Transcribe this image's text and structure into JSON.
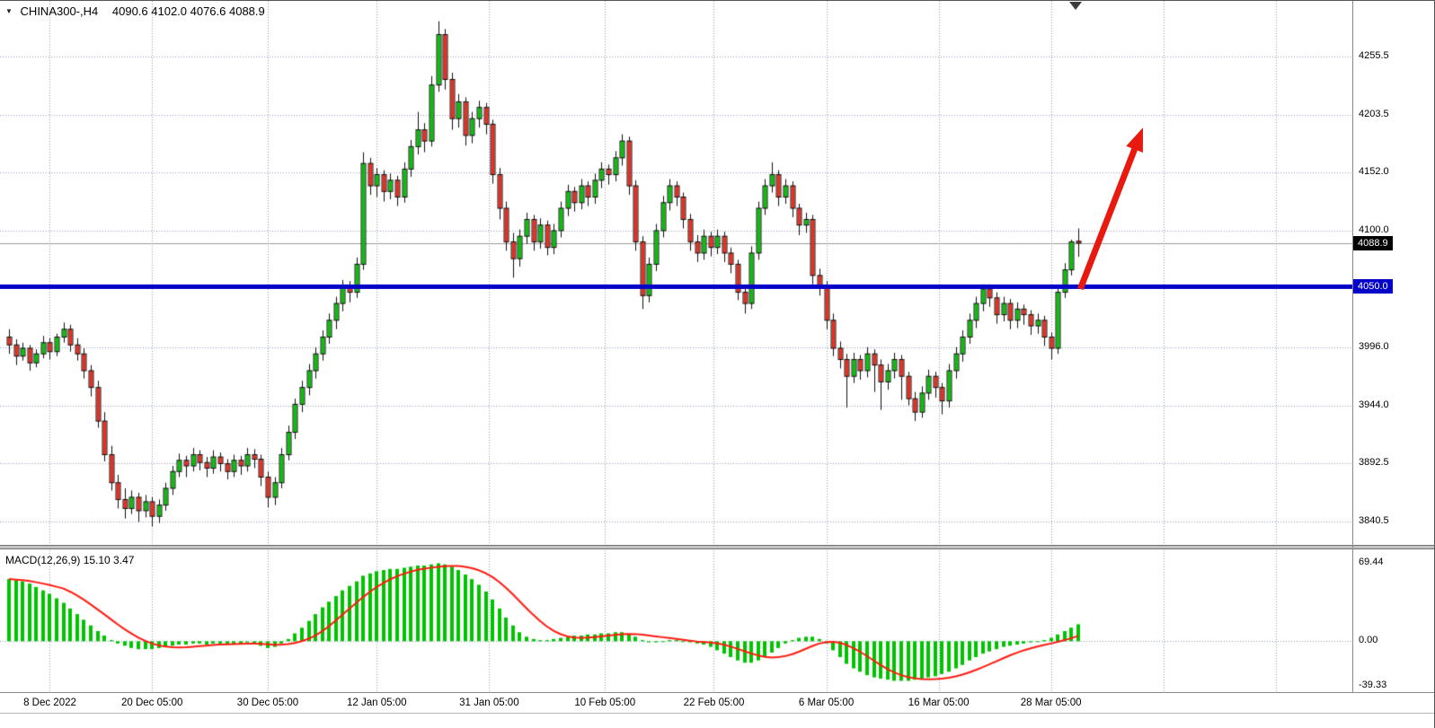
{
  "header": {
    "symbol_period": "CHINA300-,H4",
    "ohlc_text": "4090.6 4102.0 4076.6 4088.9"
  },
  "colors": {
    "background": "#ffffff",
    "grid": "#8f9bbd",
    "bull": "#05c405",
    "bear": "#ee2d1e",
    "candle_border": "#101010",
    "wick": "#101010",
    "current_price_line": "#9a9a9a",
    "macd_hist": "#00c400",
    "macd_signal": "#ff1a10",
    "badge_current_bg": "#000000",
    "badge_text": "#ffffff"
  },
  "chart_data": {
    "type": "candlestick",
    "symbol": "CHINA300-",
    "timeframe": "H4",
    "current_bar": {
      "open": 4090.6,
      "high": 4102.0,
      "low": 4076.6,
      "close": 4088.9
    },
    "price_range": [
      3819.5,
      4305.1
    ],
    "price_axis": {
      "current_label": "4088.9",
      "ticks": [
        {
          "price": 4255.5,
          "label": "4255.5"
        },
        {
          "price": 4203.5,
          "label": "4203.5"
        },
        {
          "price": 4152.0,
          "label": "4152.0"
        },
        {
          "price": 4100.0,
          "label": "4100.0"
        },
        {
          "price": 3996.0,
          "label": "3996.0"
        },
        {
          "price": 3944.0,
          "label": "3944.0"
        },
        {
          "price": 3892.5,
          "label": "3892.5"
        },
        {
          "price": 3840.5,
          "label": "3840.5"
        }
      ]
    },
    "hline": {
      "price": 4050.0,
      "label": "4050.0",
      "color": "#0202c8"
    },
    "trend_arrow": {
      "from_bar": 157.3,
      "from_price": 4048,
      "to_bar": 166.5,
      "to_price": 4192,
      "color": "#e81a10"
    },
    "time_axis": {
      "labels": [
        {
          "label": "8 Dec 2022",
          "bar": 6
        },
        {
          "label": "20 Dec 05:00",
          "bar": 21
        },
        {
          "label": "30 Dec 05:00",
          "bar": 38
        },
        {
          "label": "12 Jan 05:00",
          "bar": 54
        },
        {
          "label": "31 Jan 05:00",
          "bar": 70.5
        },
        {
          "label": "10 Feb 05:00",
          "bar": 87.5
        },
        {
          "label": "22 Feb 05:00",
          "bar": 103.5
        },
        {
          "label": "6 Mar 05:00",
          "bar": 120
        },
        {
          "label": "16 Mar 05:00",
          "bar": 136.5
        },
        {
          "label": "28 Mar 05:00",
          "bar": 153
        }
      ],
      "extra_gridline_bars": [
        169.5,
        186
      ]
    },
    "candles": [
      [
        4005,
        4012,
        3990,
        3998
      ],
      [
        3998,
        4003,
        3980,
        3988
      ],
      [
        3988,
        4000,
        3984,
        3995
      ],
      [
        3995,
        3998,
        3975,
        3982
      ],
      [
        3982,
        3994,
        3978,
        3990
      ],
      [
        3990,
        4006,
        3986,
        4000
      ],
      [
        4000,
        4004,
        3985,
        3992
      ],
      [
        3992,
        4008,
        3988,
        4005
      ],
      [
        4005,
        4018,
        4000,
        4012
      ],
      [
        4012,
        4016,
        3992,
        3998
      ],
      [
        3998,
        4004,
        3984,
        3990
      ],
      [
        3990,
        3995,
        3968,
        3975
      ],
      [
        3975,
        3980,
        3952,
        3960
      ],
      [
        3960,
        3966,
        3924,
        3930
      ],
      [
        3930,
        3938,
        3894,
        3900
      ],
      [
        3900,
        3908,
        3868,
        3875
      ],
      [
        3875,
        3882,
        3852,
        3860
      ],
      [
        3860,
        3870,
        3843,
        3852
      ],
      [
        3852,
        3868,
        3847,
        3862
      ],
      [
        3862,
        3866,
        3840,
        3850
      ],
      [
        3850,
        3864,
        3844,
        3858
      ],
      [
        3858,
        3862,
        3836,
        3845
      ],
      [
        3845,
        3860,
        3839,
        3855
      ],
      [
        3855,
        3875,
        3850,
        3870
      ],
      [
        3870,
        3890,
        3864,
        3885
      ],
      [
        3885,
        3901,
        3880,
        3895
      ],
      [
        3895,
        3899,
        3880,
        3890
      ],
      [
        3890,
        3906,
        3885,
        3900
      ],
      [
        3900,
        3904,
        3886,
        3893
      ],
      [
        3893,
        3898,
        3880,
        3888
      ],
      [
        3888,
        3904,
        3883,
        3898
      ],
      [
        3898,
        3902,
        3885,
        3892
      ],
      [
        3892,
        3896,
        3878,
        3885
      ],
      [
        3885,
        3900,
        3880,
        3895
      ],
      [
        3895,
        3899,
        3882,
        3890
      ],
      [
        3890,
        3906,
        3885,
        3900
      ],
      [
        3900,
        3905,
        3888,
        3896
      ],
      [
        3896,
        3900,
        3872,
        3880
      ],
      [
        3880,
        3885,
        3853,
        3862
      ],
      [
        3862,
        3880,
        3855,
        3875
      ],
      [
        3875,
        3906,
        3870,
        3900
      ],
      [
        3900,
        3926,
        3895,
        3920
      ],
      [
        3920,
        3950,
        3914,
        3945
      ],
      [
        3945,
        3966,
        3938,
        3960
      ],
      [
        3960,
        3981,
        3953,
        3975
      ],
      [
        3975,
        3996,
        3968,
        3990
      ],
      [
        3990,
        4011,
        3984,
        4005
      ],
      [
        4005,
        4026,
        3999,
        4020
      ],
      [
        4020,
        4041,
        4012,
        4035
      ],
      [
        4035,
        4056,
        4028,
        4050
      ],
      [
        4050,
        4055,
        4036,
        4045
      ],
      [
        4045,
        4076,
        4040,
        4070
      ],
      [
        4070,
        4170,
        4065,
        4160
      ],
      [
        4160,
        4165,
        4132,
        4140
      ],
      [
        4140,
        4156,
        4130,
        4150
      ],
      [
        4150,
        4154,
        4126,
        4135
      ],
      [
        4135,
        4151,
        4128,
        4145
      ],
      [
        4145,
        4149,
        4122,
        4130
      ],
      [
        4130,
        4161,
        4125,
        4155
      ],
      [
        4155,
        4181,
        4148,
        4175
      ],
      [
        4175,
        4206,
        4168,
        4190
      ],
      [
        4190,
        4196,
        4170,
        4180
      ],
      [
        4180,
        4238,
        4175,
        4230
      ],
      [
        4230,
        4287,
        4224,
        4275
      ],
      [
        4275,
        4280,
        4226,
        4235
      ],
      [
        4235,
        4241,
        4190,
        4200
      ],
      [
        4200,
        4222,
        4192,
        4215
      ],
      [
        4215,
        4219,
        4176,
        4185
      ],
      [
        4185,
        4206,
        4178,
        4200
      ],
      [
        4200,
        4216,
        4192,
        4210
      ],
      [
        4210,
        4214,
        4186,
        4195
      ],
      [
        4195,
        4199,
        4142,
        4150
      ],
      [
        4150,
        4156,
        4110,
        4120
      ],
      [
        4120,
        4126,
        4082,
        4090
      ],
      [
        4090,
        4098,
        4058,
        4075
      ],
      [
        4075,
        4101,
        4068,
        4095
      ],
      [
        4095,
        4116,
        4088,
        4110
      ],
      [
        4110,
        4114,
        4082,
        4090
      ],
      [
        4090,
        4111,
        4084,
        4105
      ],
      [
        4105,
        4109,
        4078,
        4085
      ],
      [
        4085,
        4106,
        4079,
        4100
      ],
      [
        4100,
        4126,
        4094,
        4120
      ],
      [
        4120,
        4141,
        4113,
        4135
      ],
      [
        4135,
        4139,
        4117,
        4125
      ],
      [
        4125,
        4146,
        4119,
        4140
      ],
      [
        4140,
        4144,
        4122,
        4130
      ],
      [
        4130,
        4151,
        4124,
        4145
      ],
      [
        4145,
        4161,
        4138,
        4155
      ],
      [
        4155,
        4159,
        4141,
        4150
      ],
      [
        4150,
        4171,
        4144,
        4165
      ],
      [
        4165,
        4186,
        4158,
        4180
      ],
      [
        4180,
        4184,
        4132,
        4140
      ],
      [
        4140,
        4145,
        4082,
        4090
      ],
      [
        4090,
        4095,
        4030,
        4042
      ],
      [
        4042,
        4076,
        4036,
        4070
      ],
      [
        4070,
        4106,
        4064,
        4100
      ],
      [
        4100,
        4131,
        4094,
        4125
      ],
      [
        4125,
        4146,
        4118,
        4140
      ],
      [
        4140,
        4144,
        4122,
        4130
      ],
      [
        4130,
        4134,
        4102,
        4110
      ],
      [
        4110,
        4115,
        4082,
        4090
      ],
      [
        4090,
        4096,
        4072,
        4080
      ],
      [
        4080,
        4101,
        4074,
        4095
      ],
      [
        4095,
        4099,
        4077,
        4085
      ],
      [
        4085,
        4101,
        4079,
        4095
      ],
      [
        4095,
        4099,
        4072,
        4080
      ],
      [
        4080,
        4085,
        4062,
        4070
      ],
      [
        4070,
        4074,
        4038,
        4045
      ],
      [
        4045,
        4050,
        4026,
        4035
      ],
      [
        4035,
        4086,
        4030,
        4080
      ],
      [
        4080,
        4126,
        4074,
        4120
      ],
      [
        4120,
        4146,
        4114,
        4140
      ],
      [
        4140,
        4161,
        4134,
        4150
      ],
      [
        4150,
        4154,
        4122,
        4130
      ],
      [
        4130,
        4146,
        4124,
        4140
      ],
      [
        4140,
        4144,
        4112,
        4120
      ],
      [
        4120,
        4124,
        4096,
        4105
      ],
      [
        4105,
        4116,
        4098,
        4110
      ],
      [
        4110,
        4114,
        4052,
        4060
      ],
      [
        4060,
        4066,
        4042,
        4050
      ],
      [
        4050,
        4055,
        4012,
        4020
      ],
      [
        4020,
        4026,
        3988,
        3995
      ],
      [
        3995,
        4001,
        3977,
        3985
      ],
      [
        3985,
        3990,
        3942,
        3970
      ],
      [
        3970,
        3991,
        3964,
        3985
      ],
      [
        3985,
        3989,
        3967,
        3975
      ],
      [
        3975,
        3996,
        3969,
        3990
      ],
      [
        3990,
        3994,
        3956,
        3980
      ],
      [
        3980,
        3985,
        3940,
        3965
      ],
      [
        3965,
        3981,
        3958,
        3975
      ],
      [
        3975,
        3991,
        3968,
        3985
      ],
      [
        3985,
        3989,
        3949,
        3970
      ],
      [
        3970,
        3974,
        3944,
        3950
      ],
      [
        3950,
        3956,
        3930,
        3938
      ],
      [
        3938,
        3961,
        3933,
        3955
      ],
      [
        3955,
        3976,
        3949,
        3970
      ],
      [
        3970,
        3974,
        3951,
        3960
      ],
      [
        3960,
        3964,
        3936,
        3948
      ],
      [
        3948,
        3981,
        3942,
        3975
      ],
      [
        3975,
        3996,
        3968,
        3990
      ],
      [
        3990,
        4011,
        3983,
        4005
      ],
      [
        4005,
        4026,
        3999,
        4020
      ],
      [
        4020,
        4041,
        4013,
        4035
      ],
      [
        4035,
        4052,
        4028,
        4048
      ],
      [
        4048,
        4052,
        4032,
        4040
      ],
      [
        4040,
        4045,
        4017,
        4025
      ],
      [
        4025,
        4041,
        4019,
        4035
      ],
      [
        4035,
        4039,
        4012,
        4020
      ],
      [
        4020,
        4036,
        4013,
        4030
      ],
      [
        4030,
        4034,
        4016,
        4025
      ],
      [
        4025,
        4029,
        4007,
        4015
      ],
      [
        4015,
        4026,
        4008,
        4020
      ],
      [
        4020,
        4024,
        3997,
        4005
      ],
      [
        4005,
        4009,
        3985,
        3995
      ],
      [
        3995,
        4051,
        3990,
        4045
      ],
      [
        4045,
        4071,
        4040,
        4065
      ],
      [
        4065,
        4092,
        4060,
        4090
      ],
      [
        4090.6,
        4102.0,
        4076.6,
        4088.9
      ]
    ],
    "macd": {
      "title": "MACD(12,26,9) 15.10 3.47",
      "value_range": [
        -44.2,
        80.5
      ],
      "ticks": [
        {
          "value": 69.44,
          "label": "69.44"
        },
        {
          "value": 0,
          "label": "0.00"
        },
        {
          "value": -39.33,
          "label": "-39.33"
        }
      ],
      "values": [
        55,
        54,
        53,
        51,
        48,
        45,
        42,
        38,
        34,
        29,
        24,
        19,
        14,
        9,
        5,
        1,
        -2,
        -4,
        -6,
        -7,
        -7,
        -7,
        -6,
        -5,
        -4,
        -3,
        -3,
        -2,
        -2,
        -3,
        -2,
        -2,
        -3,
        -2,
        -2,
        -1,
        -2,
        -4,
        -6,
        -5,
        -2,
        2,
        7,
        12,
        18,
        24,
        30,
        35,
        40,
        45,
        49,
        53,
        58,
        60,
        62,
        63,
        64,
        64,
        65,
        66,
        67,
        67,
        68,
        69,
        68,
        66,
        63,
        59,
        55,
        50,
        44,
        37,
        29,
        21,
        14,
        8,
        4,
        2,
        1,
        1,
        2,
        3,
        4,
        5,
        5,
        6,
        6,
        7,
        7,
        8,
        8,
        6,
        4,
        1,
        -1,
        -1,
        0,
        1,
        1,
        0,
        -1,
        -2,
        -3,
        -5,
        -8,
        -11,
        -14,
        -17,
        -19,
        -19,
        -17,
        -14,
        -10,
        -6,
        -2,
        1,
        3,
        4,
        4,
        2,
        -2,
        -8,
        -14,
        -20,
        -24,
        -27,
        -30,
        -32,
        -33,
        -34,
        -35,
        -35,
        -35,
        -34,
        -33,
        -32,
        -31,
        -29,
        -27,
        -24,
        -21,
        -17,
        -14,
        -11,
        -9,
        -7,
        -5,
        -4,
        -3,
        -2,
        -1,
        0,
        1,
        3,
        6,
        9,
        12,
        15
      ]
    }
  }
}
